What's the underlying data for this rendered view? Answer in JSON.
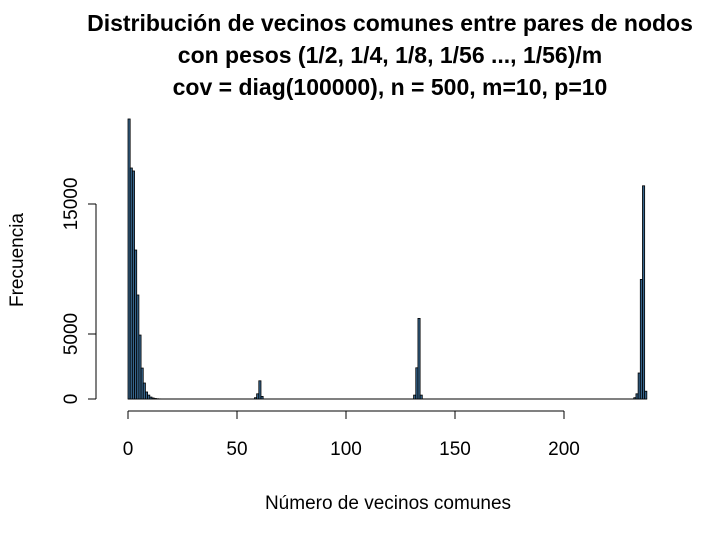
{
  "chart_data": {
    "type": "histogram",
    "title": [
      "Distribución de vecinos comunes entre pares de nodos",
      "con pesos (1/2, 1/4, 1/8, 1/56 ..., 1/56)/m",
      "cov = diag(100000), n = 500, m=10, p=10"
    ],
    "x_label": "Número de vecinos comunes",
    "y_label": "Frecuencia",
    "color": "#36648b",
    "bins": [
      0,
      1,
      2,
      3,
      4,
      5,
      6,
      7,
      8,
      9,
      10,
      11,
      12,
      13,
      14,
      15,
      16,
      17,
      18,
      19,
      20,
      21,
      22,
      23,
      24,
      25,
      26,
      27,
      28,
      29,
      30,
      31,
      32,
      33,
      34,
      35,
      36,
      37,
      38,
      39,
      40,
      41,
      42,
      43,
      44,
      45,
      46,
      47,
      48,
      49,
      50,
      51,
      52,
      53,
      54,
      55,
      56,
      57,
      58,
      59,
      60,
      61,
      62,
      63,
      64,
      65,
      66,
      67,
      68,
      69,
      70,
      71,
      72,
      73,
      74,
      75,
      76,
      77,
      78,
      79,
      80,
      81,
      82,
      83,
      84,
      85,
      86,
      87,
      88,
      89,
      90,
      91,
      92,
      93,
      94,
      95,
      96,
      97,
      98,
      99,
      100,
      101,
      102,
      103,
      104,
      105,
      106,
      107,
      108,
      109,
      110,
      111,
      112,
      113,
      114,
      115,
      116,
      117,
      118,
      119,
      120,
      121,
      122,
      123,
      124,
      125,
      126,
      127,
      128,
      129,
      130,
      131,
      132,
      133,
      134,
      135,
      136,
      137,
      138,
      139,
      140,
      141,
      142,
      143,
      144,
      145,
      146,
      147,
      148,
      149,
      150,
      151,
      152,
      153,
      154,
      155,
      156,
      157,
      158,
      159,
      160,
      161,
      162,
      163,
      164,
      165,
      166,
      167,
      168,
      169,
      170,
      171,
      172,
      173,
      174,
      175,
      176,
      177,
      178,
      179,
      180,
      181,
      182,
      183,
      184,
      185,
      186,
      187,
      188,
      189,
      190,
      191,
      192,
      193,
      194,
      195,
      196,
      197,
      198,
      199,
      200,
      201,
      202,
      203,
      204,
      205,
      206,
      207,
      208,
      209,
      210,
      211,
      212,
      213,
      214,
      215,
      216,
      217,
      218,
      219,
      220,
      221,
      222,
      223,
      224,
      225,
      226,
      227,
      228,
      229,
      230,
      231,
      232,
      233,
      234,
      235,
      236,
      237,
      238
    ],
    "values": [
      21540,
      17770,
      17540,
      11460,
      8000,
      4920,
      2380,
      1230,
      540,
      300,
      150,
      80,
      40,
      20,
      10,
      0,
      0,
      0,
      0,
      0,
      0,
      0,
      0,
      0,
      0,
      0,
      0,
      0,
      0,
      0,
      0,
      0,
      0,
      0,
      0,
      0,
      0,
      0,
      0,
      0,
      0,
      0,
      0,
      0,
      0,
      0,
      0,
      0,
      0,
      0,
      0,
      0,
      0,
      0,
      0,
      0,
      0,
      0,
      100,
      400,
      1400,
      200,
      0,
      0,
      0,
      0,
      0,
      0,
      0,
      0,
      0,
      0,
      0,
      0,
      0,
      0,
      0,
      0,
      0,
      0,
      0,
      0,
      0,
      0,
      0,
      0,
      0,
      0,
      0,
      0,
      0,
      0,
      0,
      0,
      0,
      0,
      0,
      0,
      0,
      0,
      0,
      0,
      0,
      0,
      0,
      0,
      0,
      0,
      0,
      0,
      0,
      0,
      0,
      0,
      0,
      0,
      0,
      0,
      0,
      0,
      0,
      0,
      0,
      0,
      0,
      0,
      0,
      0,
      0,
      0,
      0,
      300,
      2400,
      6200,
      300,
      0,
      0,
      0,
      0,
      0,
      0,
      0,
      0,
      0,
      0,
      0,
      0,
      0,
      0,
      0,
      0,
      0,
      0,
      0,
      0,
      0,
      0,
      0,
      0,
      0,
      0,
      0,
      0,
      0,
      0,
      0,
      0,
      0,
      0,
      0,
      0,
      0,
      0,
      0,
      0,
      0,
      0,
      0,
      0,
      0,
      0,
      0,
      0,
      0,
      0,
      0,
      0,
      0,
      0,
      0,
      0,
      0,
      0,
      0,
      0,
      0,
      0,
      0,
      0,
      0,
      0,
      0,
      0,
      0,
      0,
      0,
      0,
      0,
      0,
      0,
      0,
      0,
      0,
      0,
      0,
      0,
      0,
      0,
      0,
      0,
      0,
      0,
      0,
      0,
      0,
      0,
      0,
      0,
      0,
      0,
      0,
      0,
      100,
      400,
      2000,
      9200,
      16400,
      600
    ],
    "xlim": [
      0,
      238
    ],
    "ylim": [
      0,
      22000
    ],
    "xticks": [
      0,
      50,
      100,
      150,
      200
    ],
    "yticks": [
      0,
      5000,
      15000
    ]
  }
}
